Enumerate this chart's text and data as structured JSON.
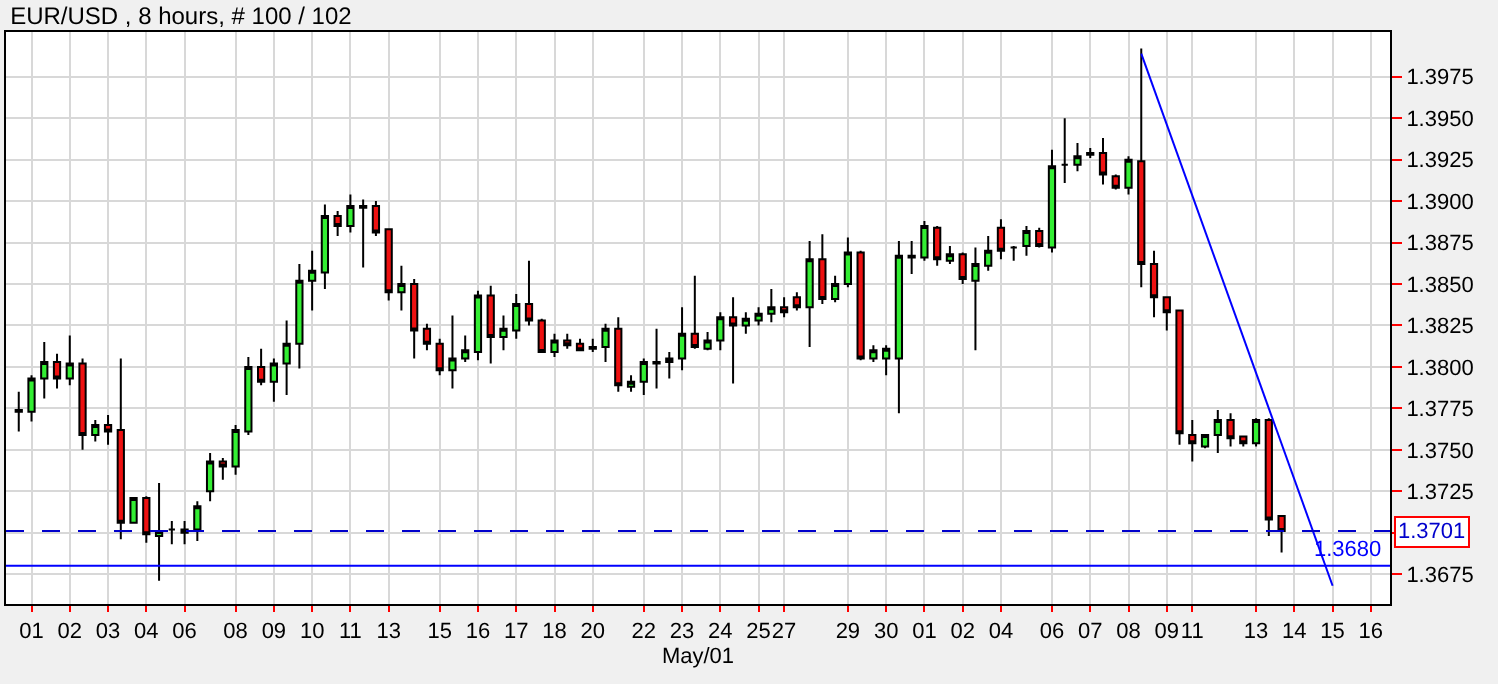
{
  "chart_data": {
    "type": "candlestick",
    "title": "EUR/USD , 8 hours, # 100 / 102",
    "xlabel": "May/01",
    "categories": [
      null,
      "01",
      null,
      null,
      "02",
      null,
      null,
      "03",
      null,
      null,
      "04",
      null,
      null,
      "06",
      null,
      null,
      null,
      "08",
      null,
      null,
      "09",
      null,
      null,
      "10",
      null,
      null,
      "11",
      null,
      null,
      "13",
      null,
      null,
      null,
      "15",
      null,
      null,
      "16",
      null,
      null,
      "17",
      null,
      null,
      "18",
      null,
      null,
      "20",
      null,
      null,
      null,
      "22",
      null,
      null,
      "23",
      null,
      null,
      "24",
      null,
      null,
      "25",
      null,
      "27",
      null,
      null,
      null,
      null,
      "29",
      null,
      null,
      "30",
      null,
      null,
      "01",
      null,
      null,
      "02",
      null,
      null,
      "04",
      null,
      null,
      null,
      "06",
      null,
      null,
      "07",
      null,
      null,
      "08",
      null,
      null,
      "09",
      null,
      "11",
      null,
      null,
      null,
      null,
      "13",
      null,
      null,
      "14",
      null,
      null,
      "15",
      null,
      null,
      "16",
      null
    ],
    "ohlc": [
      [
        1.3773,
        1.3785,
        1.3761,
        1.3774
      ],
      [
        1.3773,
        1.3795,
        1.3767,
        1.3793
      ],
      [
        1.3793,
        1.3815,
        1.3781,
        1.3803
      ],
      [
        1.3803,
        1.3808,
        1.3787,
        1.3793
      ],
      [
        1.3793,
        1.3819,
        1.3789,
        1.3802
      ],
      [
        1.3802,
        1.3805,
        1.375,
        1.3759
      ],
      [
        1.3759,
        1.3768,
        1.3755,
        1.3765
      ],
      [
        1.3765,
        1.3771,
        1.3753,
        1.3761
      ],
      [
        1.3762,
        1.3805,
        1.3696,
        1.3706
      ],
      [
        1.3706,
        1.3721,
        1.3706,
        1.3721
      ],
      [
        1.3721,
        1.3722,
        1.3694,
        1.3699
      ],
      [
        1.3698,
        1.373,
        1.3671,
        1.3701
      ],
      [
        1.3702,
        1.3707,
        1.3693,
        1.3702
      ],
      [
        1.37,
        1.3707,
        1.3693,
        1.3702
      ],
      [
        1.3702,
        1.3719,
        1.3695,
        1.3716
      ],
      [
        1.3725,
        1.3748,
        1.3719,
        1.3743
      ],
      [
        1.3743,
        1.3745,
        1.3732,
        1.374
      ],
      [
        1.374,
        1.3765,
        1.3735,
        1.3762
      ],
      [
        1.3761,
        1.3806,
        1.3759,
        1.38
      ],
      [
        1.38,
        1.3811,
        1.3789,
        1.3791
      ],
      [
        1.3791,
        1.3805,
        1.3779,
        1.3802
      ],
      [
        1.3802,
        1.3828,
        1.3783,
        1.3814
      ],
      [
        1.3814,
        1.3862,
        1.3799,
        1.3852
      ],
      [
        1.3852,
        1.387,
        1.3834,
        1.3858
      ],
      [
        1.3857,
        1.3898,
        1.3847,
        1.3891
      ],
      [
        1.3891,
        1.3894,
        1.3879,
        1.3885
      ],
      [
        1.3885,
        1.3904,
        1.3881,
        1.3897
      ],
      [
        1.3897,
        1.3901,
        1.386,
        1.3896
      ],
      [
        1.3897,
        1.39,
        1.3879,
        1.3881
      ],
      [
        1.3883,
        1.3883,
        1.384,
        1.3845
      ],
      [
        1.3845,
        1.3861,
        1.3834,
        1.385
      ],
      [
        1.385,
        1.3853,
        1.3805,
        1.3822
      ],
      [
        1.3823,
        1.3826,
        1.381,
        1.3814
      ],
      [
        1.3814,
        1.3817,
        1.3795,
        1.3798
      ],
      [
        1.3798,
        1.3831,
        1.3787,
        1.3805
      ],
      [
        1.3805,
        1.3819,
        1.3803,
        1.381
      ],
      [
        1.3809,
        1.3846,
        1.3804,
        1.3843
      ],
      [
        1.3843,
        1.3849,
        1.3802,
        1.3818
      ],
      [
        1.3818,
        1.3831,
        1.381,
        1.3823
      ],
      [
        1.3822,
        1.3844,
        1.3817,
        1.3838
      ],
      [
        1.3838,
        1.3864,
        1.3825,
        1.3828
      ],
      [
        1.3828,
        1.3829,
        1.3809,
        1.3809
      ],
      [
        1.3809,
        1.382,
        1.3806,
        1.3816
      ],
      [
        1.3816,
        1.382,
        1.3811,
        1.3813
      ],
      [
        1.3814,
        1.3817,
        1.381,
        1.381
      ],
      [
        1.3811,
        1.3817,
        1.3809,
        1.3812
      ],
      [
        1.3812,
        1.3826,
        1.3803,
        1.3823
      ],
      [
        1.3823,
        1.383,
        1.3785,
        1.3789
      ],
      [
        1.3788,
        1.3795,
        1.3785,
        1.3791
      ],
      [
        1.3791,
        1.3805,
        1.3783,
        1.3803
      ],
      [
        1.3802,
        1.3823,
        1.3787,
        1.3803
      ],
      [
        1.3803,
        1.3809,
        1.3793,
        1.3805
      ],
      [
        1.3805,
        1.3836,
        1.3798,
        1.382
      ],
      [
        1.382,
        1.3855,
        1.3811,
        1.3812
      ],
      [
        1.3811,
        1.3821,
        1.381,
        1.3816
      ],
      [
        1.3816,
        1.3833,
        1.381,
        1.383
      ],
      [
        1.383,
        1.3842,
        1.379,
        1.3825
      ],
      [
        1.3825,
        1.3833,
        1.382,
        1.3829
      ],
      [
        1.3828,
        1.3836,
        1.3825,
        1.3832
      ],
      [
        1.3832,
        1.3847,
        1.3827,
        1.3836
      ],
      [
        1.3836,
        1.3842,
        1.383,
        1.3833
      ],
      [
        1.3842,
        1.3845,
        1.3834,
        1.3836
      ],
      [
        1.3836,
        1.3876,
        1.3812,
        1.3865
      ],
      [
        1.3865,
        1.388,
        1.3838,
        1.3841
      ],
      [
        1.3841,
        1.3855,
        1.3839,
        1.385
      ],
      [
        1.385,
        1.3878,
        1.3848,
        1.3869
      ],
      [
        1.3869,
        1.387,
        1.3804,
        1.3805
      ],
      [
        1.3805,
        1.3813,
        1.3803,
        1.381
      ],
      [
        1.3805,
        1.3813,
        1.3795,
        1.3811
      ],
      [
        1.3805,
        1.3876,
        1.3772,
        1.3867
      ],
      [
        1.3866,
        1.3876,
        1.3856,
        1.3867
      ],
      [
        1.3866,
        1.3888,
        1.3864,
        1.3885
      ],
      [
        1.3884,
        1.3885,
        1.3861,
        1.3865
      ],
      [
        1.3864,
        1.3873,
        1.3862,
        1.3868
      ],
      [
        1.3868,
        1.3869,
        1.385,
        1.3853
      ],
      [
        1.3852,
        1.3872,
        1.381,
        1.3862
      ],
      [
        1.3861,
        1.3879,
        1.3858,
        1.387
      ],
      [
        1.3884,
        1.3889,
        1.3865,
        1.387
      ],
      [
        1.3872,
        1.3873,
        1.3864,
        1.3872
      ],
      [
        1.3873,
        1.3885,
        1.3867,
        1.3882
      ],
      [
        1.3882,
        1.3884,
        1.3872,
        1.3873
      ],
      [
        1.3872,
        1.3931,
        1.3869,
        1.3921
      ],
      [
        1.3922,
        1.395,
        1.3911,
        1.3922
      ],
      [
        1.3922,
        1.3935,
        1.3918,
        1.3927
      ],
      [
        1.3928,
        1.3932,
        1.3926,
        1.3929
      ],
      [
        1.3929,
        1.3938,
        1.391,
        1.3916
      ],
      [
        1.3915,
        1.3916,
        1.3907,
        1.3908
      ],
      [
        1.3908,
        1.3927,
        1.3904,
        1.3925
      ],
      [
        1.3924,
        1.3992,
        1.3848,
        1.3862
      ],
      [
        1.3862,
        1.387,
        1.383,
        1.3842
      ],
      [
        1.3842,
        1.3842,
        1.3822,
        1.3833
      ],
      [
        1.3834,
        1.3834,
        1.3753,
        1.376
      ],
      [
        1.3759,
        1.3768,
        1.3743,
        1.3754
      ],
      [
        1.3752,
        1.3759,
        1.3751,
        1.3759
      ],
      [
        1.3759,
        1.3774,
        1.3748,
        1.3768
      ],
      [
        1.3768,
        1.3772,
        1.3752,
        1.3757
      ],
      [
        1.3758,
        1.3758,
        1.3752,
        1.3754
      ],
      [
        1.3754,
        1.3769,
        1.3752,
        1.3768
      ],
      [
        1.3768,
        1.3769,
        1.3698,
        1.3708
      ],
      [
        1.371,
        1.371,
        1.3688,
        1.3701
      ],
      null,
      null,
      null,
      null,
      null,
      null,
      null,
      null
    ],
    "series": [
      {
        "type": "line",
        "color": "#0000ff",
        "values": [
          null,
          null,
          null,
          null,
          null,
          null,
          null,
          null,
          null,
          null,
          null,
          null,
          null,
          null,
          null,
          null,
          null,
          null,
          null,
          null,
          null,
          null,
          null,
          null,
          null,
          null,
          null,
          null,
          null,
          null,
          null,
          null,
          null,
          null,
          null,
          null,
          null,
          null,
          null,
          null,
          null,
          null,
          null,
          null,
          null,
          null,
          null,
          null,
          null,
          null,
          null,
          null,
          null,
          null,
          null,
          null,
          null,
          null,
          null,
          null,
          null,
          null,
          null,
          null,
          null,
          null,
          null,
          null,
          null,
          null,
          null,
          null,
          null,
          null,
          null,
          null,
          null,
          null,
          null,
          null,
          null,
          null,
          null,
          null,
          null,
          null,
          null,
          null,
          1.3989,
          null,
          null,
          null,
          null,
          null,
          null,
          null,
          null,
          null,
          null,
          null,
          null,
          null,
          null,
          1.3668,
          null,
          null,
          null,
          null
        ]
      }
    ],
    "ref_lines": [
      {
        "axis": "y",
        "value": 1.3701,
        "label": "1.3701",
        "color": "#0000cc",
        "line_style": "dashed"
      },
      {
        "axis": "y",
        "value": 1.368,
        "label": "1.3680",
        "color": "#0000ff",
        "line_style": "solid"
      }
    ],
    "ylim": [
      1.3657,
      1.4002
    ],
    "yticks": [
      1.3675,
      {
        "value": 1.37,
        "label": null
      },
      1.3725,
      {
        "value": 1.375,
        "label": "1.3750"
      },
      1.3775,
      {
        "value": 1.38,
        "label": "1.3800"
      },
      1.3825,
      {
        "value": 1.385,
        "label": "1.3850"
      },
      1.3875,
      {
        "value": 1.39,
        "label": "1.3900"
      },
      1.3925,
      {
        "value": 1.395,
        "label": "1.3950"
      },
      1.3975
    ],
    "grid": true
  }
}
